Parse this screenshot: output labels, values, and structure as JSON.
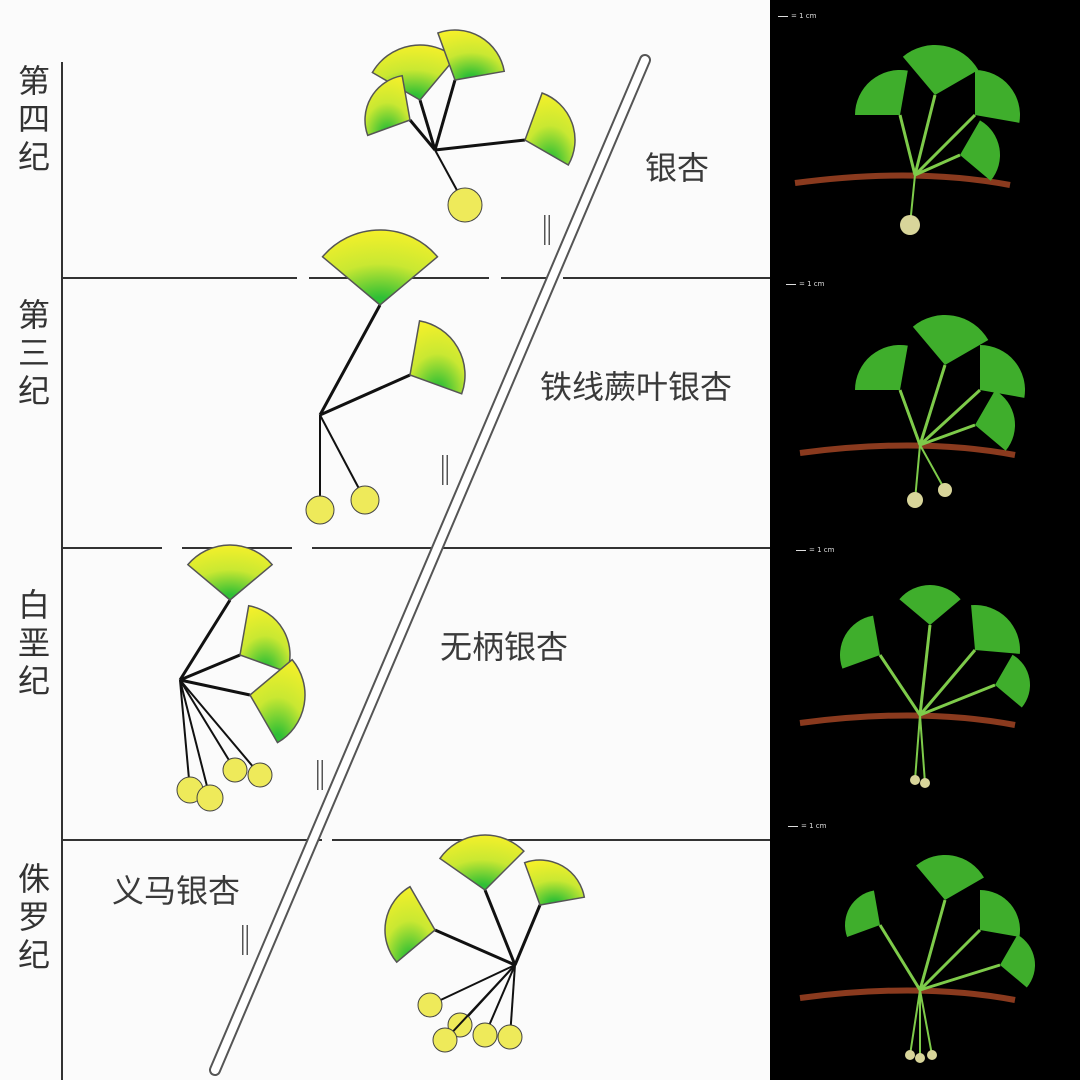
{
  "eras": [
    {
      "label": "第四纪"
    },
    {
      "label": "第三纪"
    },
    {
      "label": "白垩纪"
    },
    {
      "label": "侏罗纪"
    }
  ],
  "species": [
    {
      "label": "银杏"
    },
    {
      "label": "铁线蕨叶银杏"
    },
    {
      "label": "无柄银杏"
    },
    {
      "label": "义马银杏"
    }
  ],
  "photo_scale_labels": [
    "= 1 cm",
    "= 1 cm",
    "= 1 cm",
    "= 1 cm"
  ],
  "colors": {
    "leaf_yellow": "#f2ef2a",
    "leaf_green": "#39c43a",
    "photo_leaf": "#3fae2c",
    "rhizome": "#8a3a1e"
  }
}
